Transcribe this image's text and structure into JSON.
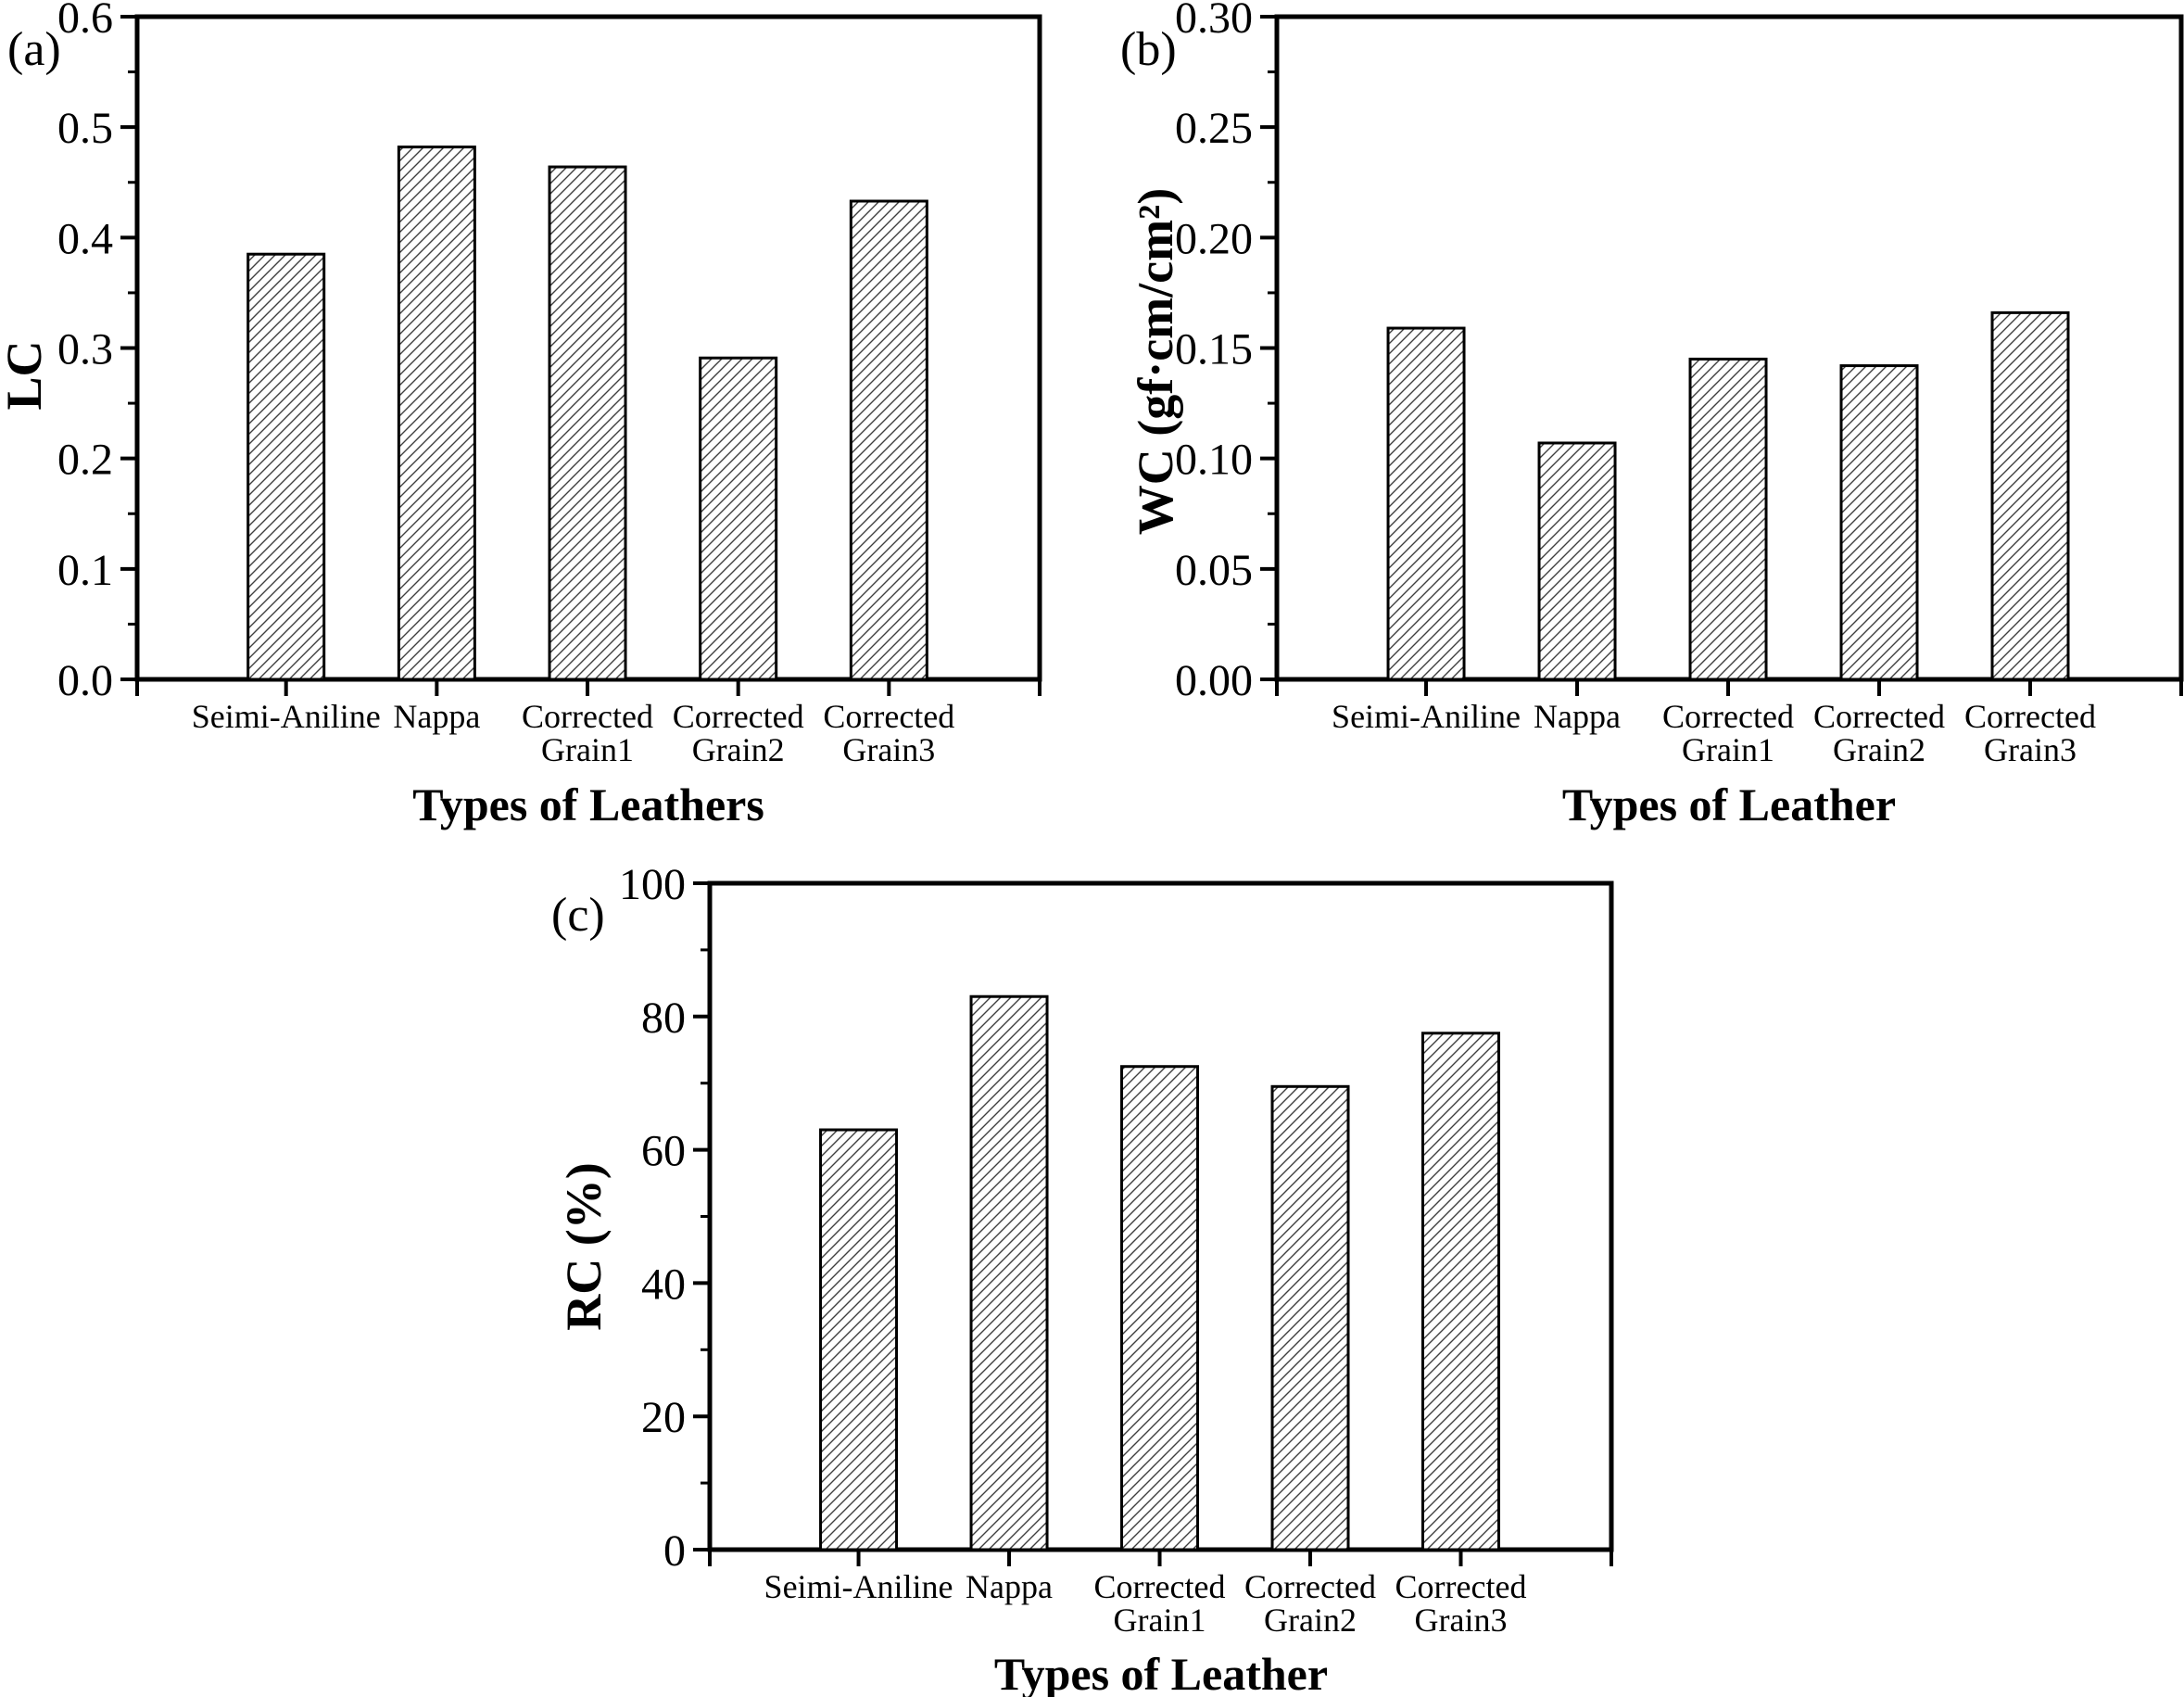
{
  "figure": {
    "type": "scientific-bar-figure",
    "background": "#ffffff",
    "ink": "#000000",
    "hatch_color": "#3f3f3f",
    "bar_fill": "#ffffff"
  },
  "chart_data": [
    {
      "id": "a",
      "type": "bar",
      "panel_label": "(a)",
      "ylabel": "LC",
      "xlabel": "Types of Leathers",
      "categories": [
        "Seimi-Aniline",
        "Nappa",
        "Corrected Grain1",
        "Corrected Grain2",
        "Corrected Grain3"
      ],
      "values": [
        0.385,
        0.482,
        0.464,
        0.291,
        0.433
      ],
      "ylim": [
        0.0,
        0.6
      ],
      "ytick_values": [
        0.0,
        0.1,
        0.2,
        0.3,
        0.4,
        0.5,
        0.6
      ],
      "ytick_labels": [
        "0.0",
        "0.1",
        "0.2",
        "0.3",
        "0.4",
        "0.5",
        "0.6"
      ],
      "minor_step": 0.05,
      "grid": false,
      "legend": null
    },
    {
      "id": "b",
      "type": "bar",
      "panel_label": "(b)",
      "ylabel": "WC (gf·cm/cm²)",
      "xlabel": "Types of Leather",
      "categories": [
        "Seimi-Aniline",
        "Nappa",
        "Corrected Grain1",
        "Corrected Grain2",
        "Corrected Grain3"
      ],
      "values": [
        0.159,
        0.107,
        0.145,
        0.142,
        0.166
      ],
      "ylim": [
        0.0,
        0.3
      ],
      "ytick_values": [
        0.0,
        0.05,
        0.1,
        0.15,
        0.2,
        0.25,
        0.3
      ],
      "ytick_labels": [
        "0.00",
        "0.05",
        "0.10",
        "0.15",
        "0.20",
        "0.25",
        "0.30"
      ],
      "minor_step": 0.025,
      "grid": false,
      "legend": null
    },
    {
      "id": "c",
      "type": "bar",
      "panel_label": "(c)",
      "ylabel": "RC  (%)",
      "xlabel": "Types of Leather",
      "categories": [
        "Seimi-Aniline",
        "Nappa",
        "Corrected Grain1",
        "Corrected Grain2",
        "Corrected Grain3"
      ],
      "values": [
        63,
        83,
        72.5,
        69.5,
        77.5
      ],
      "ylim": [
        0,
        100
      ],
      "ytick_values": [
        0,
        20,
        40,
        60,
        80,
        100
      ],
      "ytick_labels": [
        "0",
        "20",
        "40",
        "60",
        "80",
        "100"
      ],
      "minor_step": 10,
      "grid": false,
      "legend": null
    }
  ]
}
